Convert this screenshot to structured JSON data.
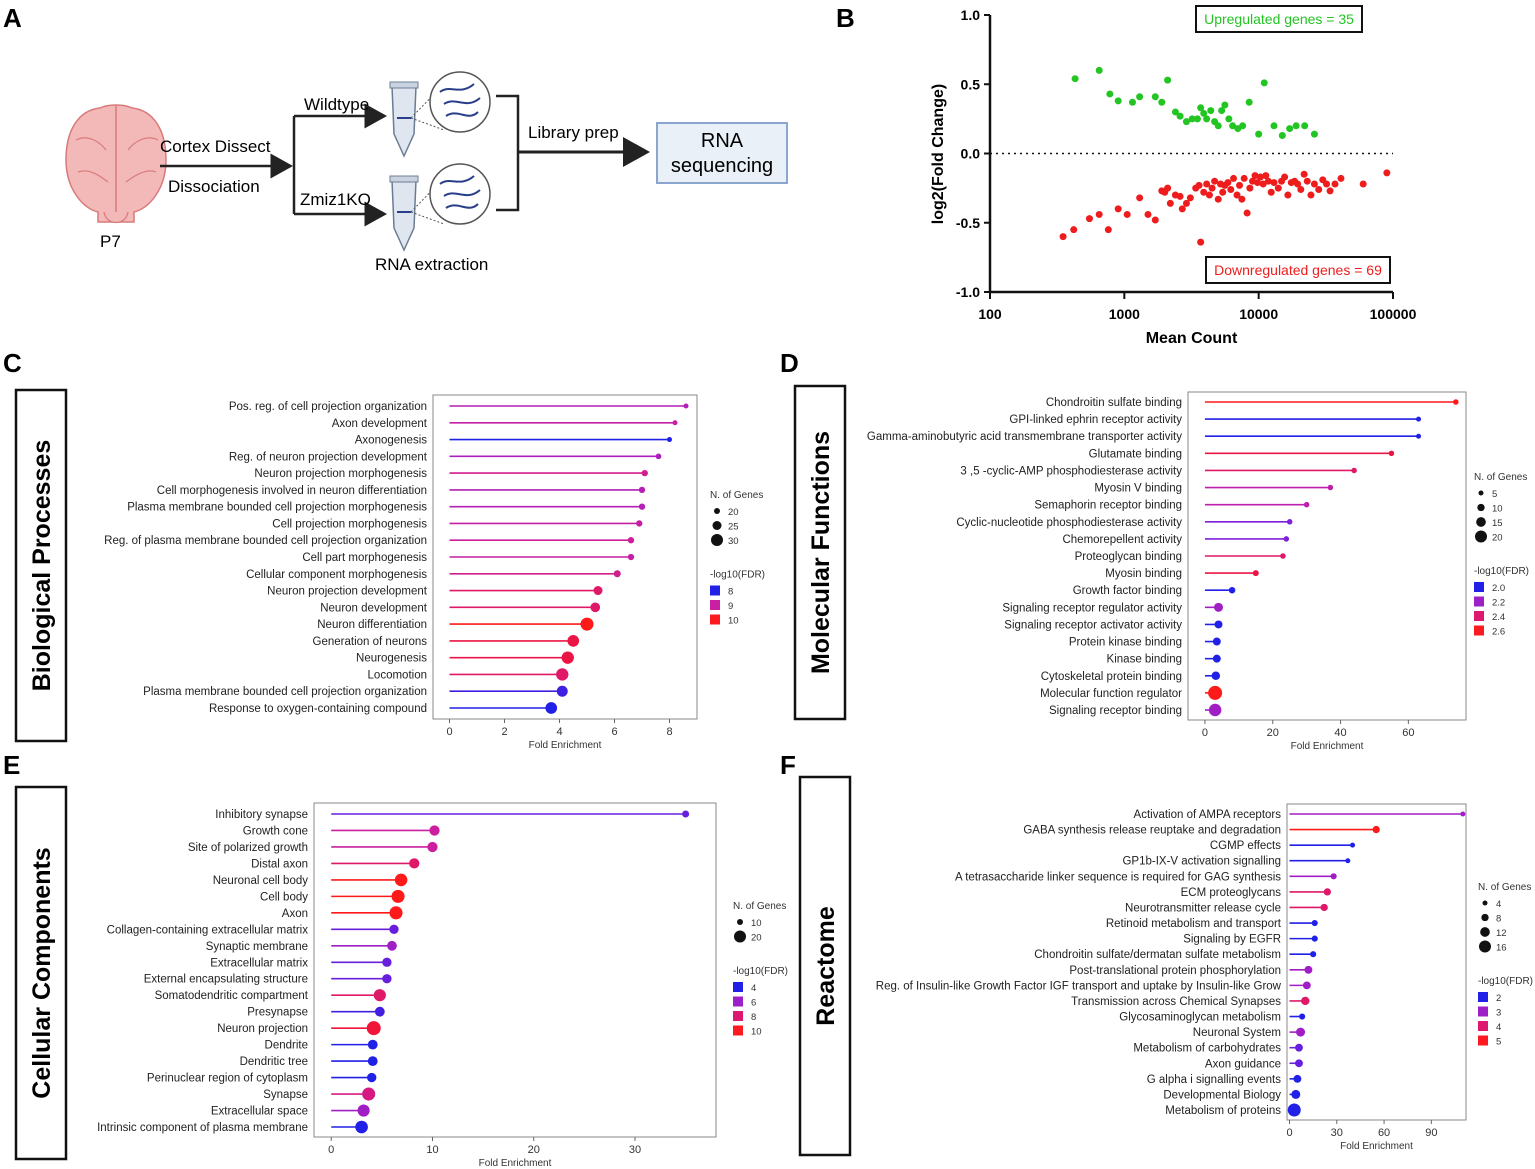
{
  "panel_letters": [
    "A",
    "B",
    "C",
    "D",
    "E",
    "F"
  ],
  "schematic": {
    "age_label": "P7",
    "step1_top": "Cortex Dissect",
    "step1_bottom": "Dissociation",
    "wildtype": "Wildtype",
    "knockout": "Zmiz1KO",
    "extraction": "RNA extraction",
    "library": "Library prep",
    "box_line1": "RNA",
    "box_line2": "sequencing"
  },
  "colors": {
    "up": "#22c522",
    "down": "#ee1c1c",
    "fdr_low": "#2020e6",
    "fdr_mid1": "#8a1fd8",
    "fdr_mid2": "#cc1fa0",
    "fdr_high": "#e8144a",
    "fdr_max": "#ff1a1a"
  },
  "chart_data": [
    {
      "id": "B",
      "type": "scatter",
      "xlabel": "Mean Count",
      "ylabel": "log2(Fold Change)",
      "xscale": "log",
      "xlim": [
        100,
        100000
      ],
      "ylim": [
        -1.0,
        1.0
      ],
      "xticks": [
        "100",
        "1000",
        "10000",
        "100000"
      ],
      "yticks": [
        "1.0",
        "0.5",
        "0.0",
        "-0.5",
        "-1.0"
      ],
      "annotation_up": "Upregulated genes = 35",
      "annotation_down": "Downregulated genes = 69",
      "up_points": [
        [
          430,
          0.54
        ],
        [
          650,
          0.6
        ],
        [
          780,
          0.43
        ],
        [
          900,
          0.38
        ],
        [
          1150,
          0.37
        ],
        [
          1300,
          0.41
        ],
        [
          1700,
          0.41
        ],
        [
          1900,
          0.37
        ],
        [
          2100,
          0.53
        ],
        [
          2400,
          0.3
        ],
        [
          2600,
          0.27
        ],
        [
          2900,
          0.23
        ],
        [
          3200,
          0.25
        ],
        [
          3500,
          0.25
        ],
        [
          3700,
          0.33
        ],
        [
          3900,
          0.29
        ],
        [
          4100,
          0.25
        ],
        [
          4400,
          0.31
        ],
        [
          4700,
          0.23
        ],
        [
          5000,
          0.2
        ],
        [
          5300,
          0.31
        ],
        [
          5600,
          0.35
        ],
        [
          6000,
          0.25
        ],
        [
          6400,
          0.2
        ],
        [
          7000,
          0.18
        ],
        [
          7600,
          0.2
        ],
        [
          8500,
          0.37
        ],
        [
          10000,
          0.14
        ],
        [
          11000,
          0.51
        ],
        [
          13000,
          0.2
        ],
        [
          15000,
          0.13
        ],
        [
          17000,
          0.18
        ],
        [
          19000,
          0.2
        ],
        [
          22000,
          0.2
        ],
        [
          26000,
          0.14
        ]
      ],
      "down_points": [
        [
          350,
          -0.6
        ],
        [
          420,
          -0.55
        ],
        [
          550,
          -0.47
        ],
        [
          650,
          -0.44
        ],
        [
          760,
          -0.55
        ],
        [
          900,
          -0.4
        ],
        [
          1050,
          -0.44
        ],
        [
          1300,
          -0.32
        ],
        [
          1500,
          -0.44
        ],
        [
          1700,
          -0.48
        ],
        [
          1900,
          -0.27
        ],
        [
          2000,
          -0.28
        ],
        [
          2100,
          -0.25
        ],
        [
          2200,
          -0.36
        ],
        [
          2400,
          -0.3
        ],
        [
          2600,
          -0.31
        ],
        [
          2700,
          -0.4
        ],
        [
          2900,
          -0.36
        ],
        [
          3100,
          -0.32
        ],
        [
          3400,
          -0.25
        ],
        [
          3600,
          -0.23
        ],
        [
          3700,
          -0.64
        ],
        [
          3900,
          -0.28
        ],
        [
          4100,
          -0.22
        ],
        [
          4300,
          -0.3
        ],
        [
          4500,
          -0.25
        ],
        [
          4700,
          -0.2
        ],
        [
          5000,
          -0.33
        ],
        [
          5200,
          -0.22
        ],
        [
          5400,
          -0.28
        ],
        [
          5600,
          -0.23
        ],
        [
          5900,
          -0.21
        ],
        [
          6200,
          -0.26
        ],
        [
          6500,
          -0.18
        ],
        [
          6900,
          -0.3
        ],
        [
          7200,
          -0.23
        ],
        [
          7500,
          -0.33
        ],
        [
          7800,
          -0.18
        ],
        [
          8200,
          -0.43
        ],
        [
          8600,
          -0.25
        ],
        [
          9000,
          -0.2
        ],
        [
          9400,
          -0.16
        ],
        [
          9800,
          -0.21
        ],
        [
          10300,
          -0.17
        ],
        [
          10800,
          -0.22
        ],
        [
          11300,
          -0.16
        ],
        [
          11800,
          -0.2
        ],
        [
          12400,
          -0.28
        ],
        [
          13000,
          -0.21
        ],
        [
          14000,
          -0.25
        ],
        [
          14800,
          -0.2
        ],
        [
          15600,
          -0.17
        ],
        [
          16500,
          -0.3
        ],
        [
          17500,
          -0.21
        ],
        [
          18500,
          -0.2
        ],
        [
          19500,
          -0.22
        ],
        [
          20600,
          -0.26
        ],
        [
          21800,
          -0.15
        ],
        [
          23000,
          -0.2
        ],
        [
          24500,
          -0.3
        ],
        [
          26000,
          -0.22
        ],
        [
          28000,
          -0.26
        ],
        [
          30000,
          -0.19
        ],
        [
          32000,
          -0.22
        ],
        [
          34000,
          -0.27
        ],
        [
          37000,
          -0.22
        ],
        [
          41000,
          -0.18
        ],
        [
          60000,
          -0.22
        ],
        [
          90000,
          -0.14
        ]
      ]
    },
    {
      "id": "C",
      "type": "lollipop",
      "title": "Biological Processes",
      "xlabel": "Fold Enrichment",
      "xlim": [
        -0.6,
        9
      ],
      "xticks": [
        0,
        2,
        4,
        6,
        8
      ],
      "size_legend_title": "N. of Genes",
      "size_legend": [
        20,
        25,
        30
      ],
      "color_legend_title": "-log10(FDR)",
      "color_legend": [
        8,
        9,
        10
      ],
      "categories": [
        "Pos. reg. of cell projection organization",
        "Axon development",
        "Axonogenesis",
        "Reg. of neuron projection development",
        "Neuron projection morphogenesis",
        "Cell morphogenesis involved in neuron differentiation",
        "Plasma membrane bounded cell projection morphogenesis",
        "Cell projection morphogenesis",
        "Reg. of plasma membrane bounded cell projection organization",
        "Cell part morphogenesis",
        "Cellular component morphogenesis",
        "Neuron projection development",
        "Neuron development",
        "Neuron differentiation",
        "Generation of neurons",
        "Neurogenesis",
        "Locomotion",
        "Plasma membrane bounded cell projection organization",
        "Response to oxygen-containing compound"
      ],
      "values": [
        8.6,
        8.2,
        8.0,
        7.6,
        7.1,
        7.0,
        7.0,
        6.9,
        6.6,
        6.6,
        6.1,
        5.4,
        5.3,
        5.0,
        4.5,
        4.3,
        4.1,
        4.1,
        3.7
      ],
      "genes": [
        18,
        18,
        18,
        19,
        20,
        20,
        20,
        20,
        20,
        20,
        21,
        24,
        25,
        30,
        28,
        29,
        29,
        27,
        28
      ],
      "fdr": [
        8.9,
        9.1,
        7.8,
        8.8,
        9.3,
        8.9,
        8.9,
        9.1,
        9.2,
        9.1,
        9.3,
        9.6,
        9.6,
        10.5,
        9.9,
        9.9,
        9.6,
        8.0,
        7.8
      ]
    },
    {
      "id": "D",
      "type": "lollipop",
      "title": "Molecular Functions",
      "xlabel": "Fold Enrichment",
      "xlim": [
        -5,
        77
      ],
      "xticks": [
        0,
        20,
        40,
        60
      ],
      "size_legend_title": "N. of Genes",
      "size_legend": [
        5,
        10,
        15,
        20
      ],
      "color_legend_title": "-log10(FDR)",
      "color_legend": [
        "2.0",
        "2.2",
        "2.4",
        "2.6"
      ],
      "categories": [
        "Chondroitin sulfate binding",
        "GPI-linked ephrin receptor activity",
        "Gamma-aminobutyric acid transmembrane transporter activity",
        "Glutamate binding",
        "3 ,5 -cyclic-AMP phosphodiesterase activity",
        "Myosin V binding",
        "Semaphorin receptor binding",
        "Cyclic-nucleotide phosphodiesterase activity",
        "Chemorepellent activity",
        "Proteoglycan binding",
        "Myosin binding",
        "Growth factor binding",
        "Signaling receptor regulator activity",
        "Signaling receptor activator activity",
        "Protein kinase binding",
        "Kinase binding",
        "Cytoskeletal protein binding",
        "Molecular function regulator",
        "Signaling receptor binding"
      ],
      "values": [
        74,
        63,
        63,
        55,
        44,
        37,
        30,
        25,
        24,
        23,
        15,
        8,
        4,
        4,
        3.5,
        3.5,
        3.2,
        3,
        3
      ],
      "genes": [
        3,
        2,
        2,
        3,
        3,
        3,
        3,
        3,
        3,
        3,
        4,
        5,
        10,
        8,
        8,
        8,
        9,
        20,
        17
      ],
      "fdr": [
        2.8,
        1.9,
        1.9,
        2.6,
        2.5,
        2.3,
        2.3,
        2.1,
        2.1,
        2.5,
        2.6,
        1.9,
        2.2,
        1.9,
        1.9,
        1.9,
        1.9,
        2.8,
        2.2
      ]
    },
    {
      "id": "E",
      "type": "lollipop",
      "title": "Cellular Components",
      "xlabel": "Fold Enrichment",
      "xlim": [
        -1.7,
        38
      ],
      "xticks": [
        0,
        10,
        20,
        30
      ],
      "size_legend_title": "N. of Genes",
      "size_legend": [
        10,
        20
      ],
      "color_legend_title": "-log10(FDR)",
      "color_legend": [
        4,
        6,
        8,
        10
      ],
      "categories": [
        "Inhibitory synapse",
        "Growth cone",
        "Site of polarized growth",
        "Distal axon",
        "Neuronal cell body",
        "Cell body",
        "Axon",
        "Collagen-containing extracellular matrix",
        "Synaptic membrane",
        "Extracellular matrix",
        "External encapsulating structure",
        "Somatodendritic compartment",
        "Presynapse",
        "Neuron projection",
        "Dendrite",
        "Dendritic tree",
        "Perinuclear region of cytoplasm",
        "Synapse",
        "Extracellular space",
        "Intrinsic component of plasma membrane"
      ],
      "values": [
        35,
        10.2,
        10,
        8.2,
        6.9,
        6.6,
        6.4,
        6.2,
        6,
        5.5,
        5.5,
        4.8,
        4.8,
        4.2,
        4.1,
        4.1,
        4.0,
        3.7,
        3.2,
        3.0
      ],
      "genes": [
        5,
        12,
        12,
        12,
        17,
        18,
        18,
        10,
        11,
        10,
        10,
        16,
        11,
        20,
        11,
        11,
        10,
        18,
        16,
        17
      ],
      "fdr": [
        5,
        7,
        7,
        8,
        10,
        10,
        10,
        5,
        6,
        5,
        5,
        8,
        4.5,
        9,
        4,
        4,
        4,
        7.5,
        6,
        4
      ]
    },
    {
      "id": "F",
      "type": "lollipop",
      "title": "Reactome",
      "xlabel": "Fold Enrichment",
      "xlim": [
        -1.6,
        112
      ],
      "xticks": [
        0,
        30,
        60,
        90
      ],
      "size_legend_title": "N. of Genes",
      "size_legend": [
        4,
        8,
        12,
        16
      ],
      "color_legend_title": "-log10(FDR)",
      "color_legend": [
        2,
        3,
        4,
        5
      ],
      "categories": [
        "Activation of AMPA receptors",
        "GABA synthesis release reuptake and degradation",
        "CGMP effects",
        "GP1b-IX-V activation signalling",
        "A tetrasaccharide linker sequence is required for GAG synthesis",
        "ECM proteoglycans",
        "Neurotransmitter release cycle",
        "Retinoid metabolism and transport",
        "Signaling by EGFR",
        "Chondroitin sulfate/dermatan sulfate metabolism",
        "Post-translational protein phosphorylation",
        "Reg. of Insulin-like Growth Factor IGF transport and uptake by Insulin-like Grow",
        "Transmission across Chemical Synapses",
        "Glycosaminoglycan metabolism",
        "Neuronal System",
        "Metabolism of carbohydrates",
        "Axon guidance",
        "G alpha i signalling events",
        "Developmental Biology",
        "Metabolism of proteins"
      ],
      "values": [
        110,
        55,
        40,
        37,
        28,
        24,
        22,
        16,
        16,
        15,
        12,
        11,
        10,
        8,
        7,
        6,
        6,
        5,
        4,
        3
      ],
      "genes": [
        2,
        6,
        2,
        2,
        4,
        6,
        6,
        4,
        4,
        4,
        7,
        7,
        8,
        4,
        9,
        7,
        7,
        7,
        9,
        16
      ],
      "fdr": [
        3,
        5,
        2,
        2,
        3,
        4,
        4,
        2,
        2,
        2,
        3,
        3,
        4,
        2,
        3,
        2.5,
        2.5,
        2,
        2,
        2
      ]
    }
  ]
}
